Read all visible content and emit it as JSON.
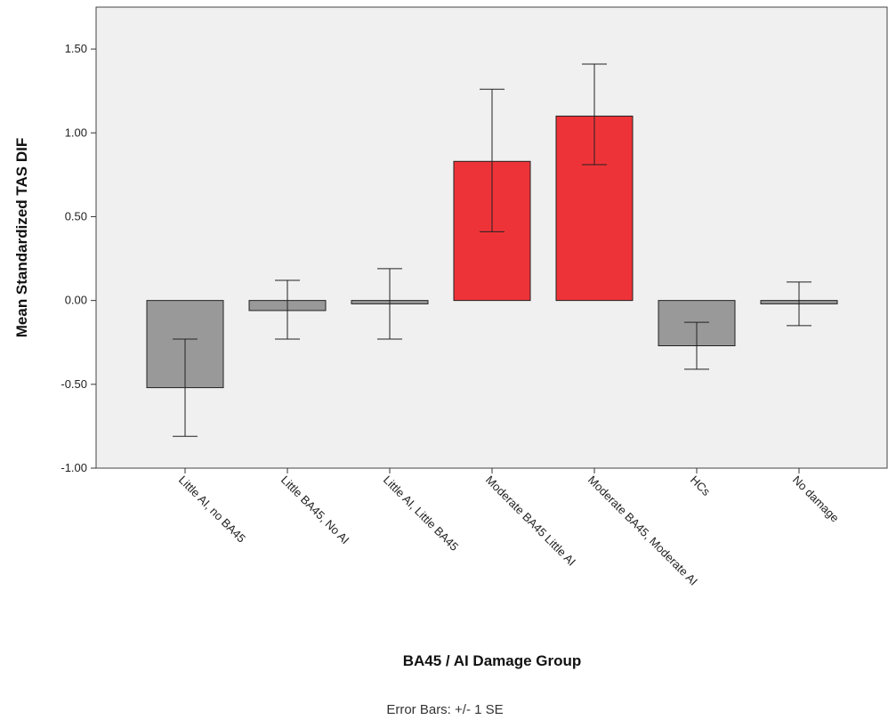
{
  "chart_data": {
    "type": "bar",
    "categories": [
      "Little AI, no BA45",
      "Little BA45, No AI",
      "Little AI, Little BA45",
      "Moderate BA45 Little AI",
      "Moderate BA45, Moderate AI",
      "HCs",
      "No damage"
    ],
    "values": [
      -0.52,
      -0.06,
      -0.02,
      0.83,
      1.1,
      -0.27,
      -0.02
    ],
    "error_low": [
      -0.81,
      -0.23,
      -0.23,
      0.41,
      0.81,
      -0.41,
      -0.15
    ],
    "error_high": [
      -0.23,
      0.12,
      0.19,
      1.26,
      1.41,
      -0.13,
      0.11
    ],
    "bar_colors": [
      "#999999",
      "#999999",
      "#999999",
      "#ee3338",
      "#ee3338",
      "#999999",
      "#999999"
    ],
    "xlabel": "BA45 / AI Damage Group",
    "ylabel": "Mean Standardized TAS DIF",
    "ylim": [
      -1.0,
      1.75
    ],
    "yticks": [
      1.5,
      1.0,
      0.5,
      0.0,
      -0.5,
      -1.0
    ],
    "ytick_labels": [
      "1.50",
      "1.00",
      "0.50",
      "0.00",
      "-0.50",
      "-1.00"
    ],
    "grid": false,
    "plot_background": "#f0f0f0",
    "footnote": "Error Bars: +/- 1 SE"
  }
}
